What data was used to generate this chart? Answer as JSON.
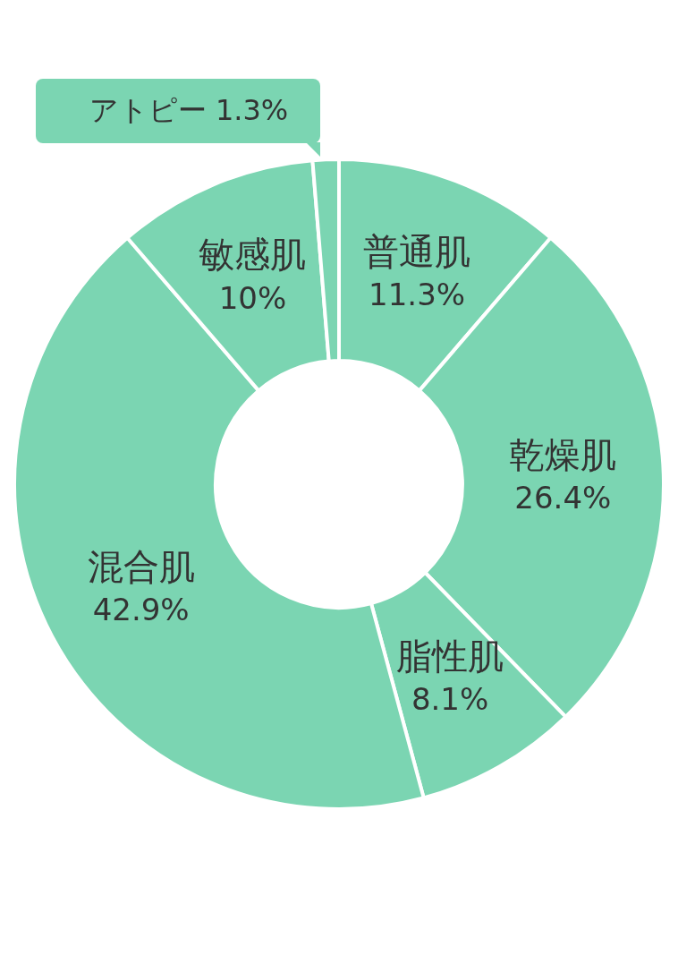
{
  "chart_data": {
    "type": "donut",
    "categories": [
      "普通肌",
      "乾燥肌",
      "脂性肌",
      "混合肌",
      "敏感肌",
      "アトピー"
    ],
    "values": [
      11.3,
      26.4,
      8.1,
      42.9,
      10,
      1.3
    ],
    "value_labels": [
      "11.3%",
      "26.4%",
      "8.1%",
      "42.9%",
      "10%",
      "1.3%"
    ],
    "colors": [
      "#7bd5b2",
      "#7bd5b2",
      "#7bd5b2",
      "#7bd5b2",
      "#7bd5b2",
      "#7bd5b2"
    ],
    "legend": false
  }
}
